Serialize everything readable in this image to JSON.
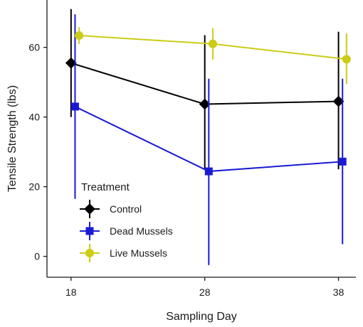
{
  "chart_data": {
    "type": "line",
    "title": "",
    "xlabel": "Sampling Day",
    "ylabel": "Tensile Strength (lbs)",
    "x": [
      18,
      28,
      38
    ],
    "x_ticks": [
      "18",
      "28",
      "38"
    ],
    "y_ticks": [
      0,
      20,
      40,
      60
    ],
    "xlim": [
      16.2,
      39.3
    ],
    "ylim": [
      -6,
      73.6
    ],
    "grid": false,
    "legend": {
      "title": "Treatment",
      "placement": "inside-bottom-left"
    },
    "series": [
      {
        "name": "Control",
        "color": "#000000",
        "marker": "diamond",
        "x": [
          18,
          28,
          38
        ],
        "values": [
          55.5,
          43.7,
          44.5
        ],
        "error_low": [
          40.0,
          25.0,
          25.0
        ],
        "error_high": [
          71.0,
          63.5,
          64.5
        ]
      },
      {
        "name": "Dead Mussels",
        "color": "#1a1ad6",
        "marker": "square",
        "x": [
          18.3,
          28.3,
          38.3
        ],
        "values": [
          43.0,
          24.4,
          27.2
        ],
        "error_low": [
          16.5,
          -2.5,
          3.5
        ],
        "error_high": [
          69.5,
          51.0,
          51.0
        ],
        "rendering_note_omitted": true
      },
      {
        "name": "Live Mussels",
        "color": "#cccc16",
        "marker": "circle",
        "x": [
          18.6,
          28.6,
          38.6
        ],
        "values": [
          63.4,
          61.0,
          56.6
        ],
        "error_low": [
          61.0,
          56.5,
          49.5
        ],
        "error_high": [
          65.8,
          65.5,
          64.0
        ]
      }
    ]
  }
}
